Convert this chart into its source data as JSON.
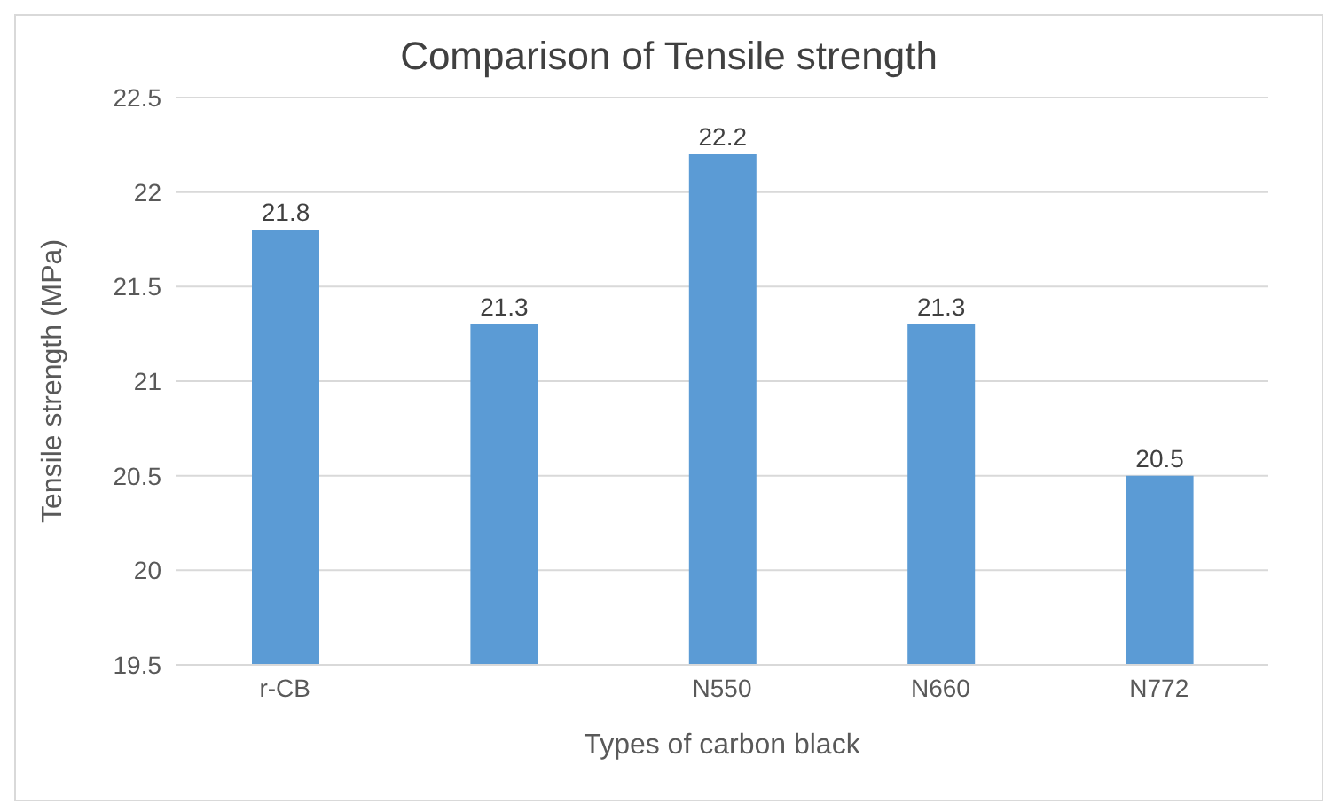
{
  "chart_data": {
    "type": "bar",
    "title": "Comparison of Tensile strength",
    "xlabel": "Types of carbon black",
    "ylabel": "Tensile strength (MPa)",
    "categories": [
      "r-CB",
      null,
      "N550",
      "N660",
      "N772"
    ],
    "values": [
      21.8,
      21.3,
      22.2,
      21.3,
      20.5
    ],
    "color": "#5b9bd5",
    "ylim": [
      19.5,
      22.5
    ],
    "yticks": [
      19.5,
      20,
      20.5,
      21,
      21.5,
      22,
      22.5
    ],
    "grid": "y",
    "data_labels": true
  }
}
